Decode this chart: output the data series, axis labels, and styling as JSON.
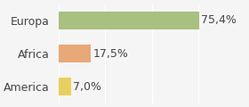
{
  "categories": [
    "Europa",
    "Africa",
    "America"
  ],
  "values": [
    75.4,
    17.5,
    7.0
  ],
  "labels": [
    "75,4%",
    "17,5%",
    "7,0%"
  ],
  "bar_colors": [
    "#a8c080",
    "#e8a878",
    "#e8d060"
  ],
  "xlim": [
    0,
    100
  ],
  "background_color": "#f5f5f5",
  "label_fontsize": 9,
  "tick_fontsize": 9
}
